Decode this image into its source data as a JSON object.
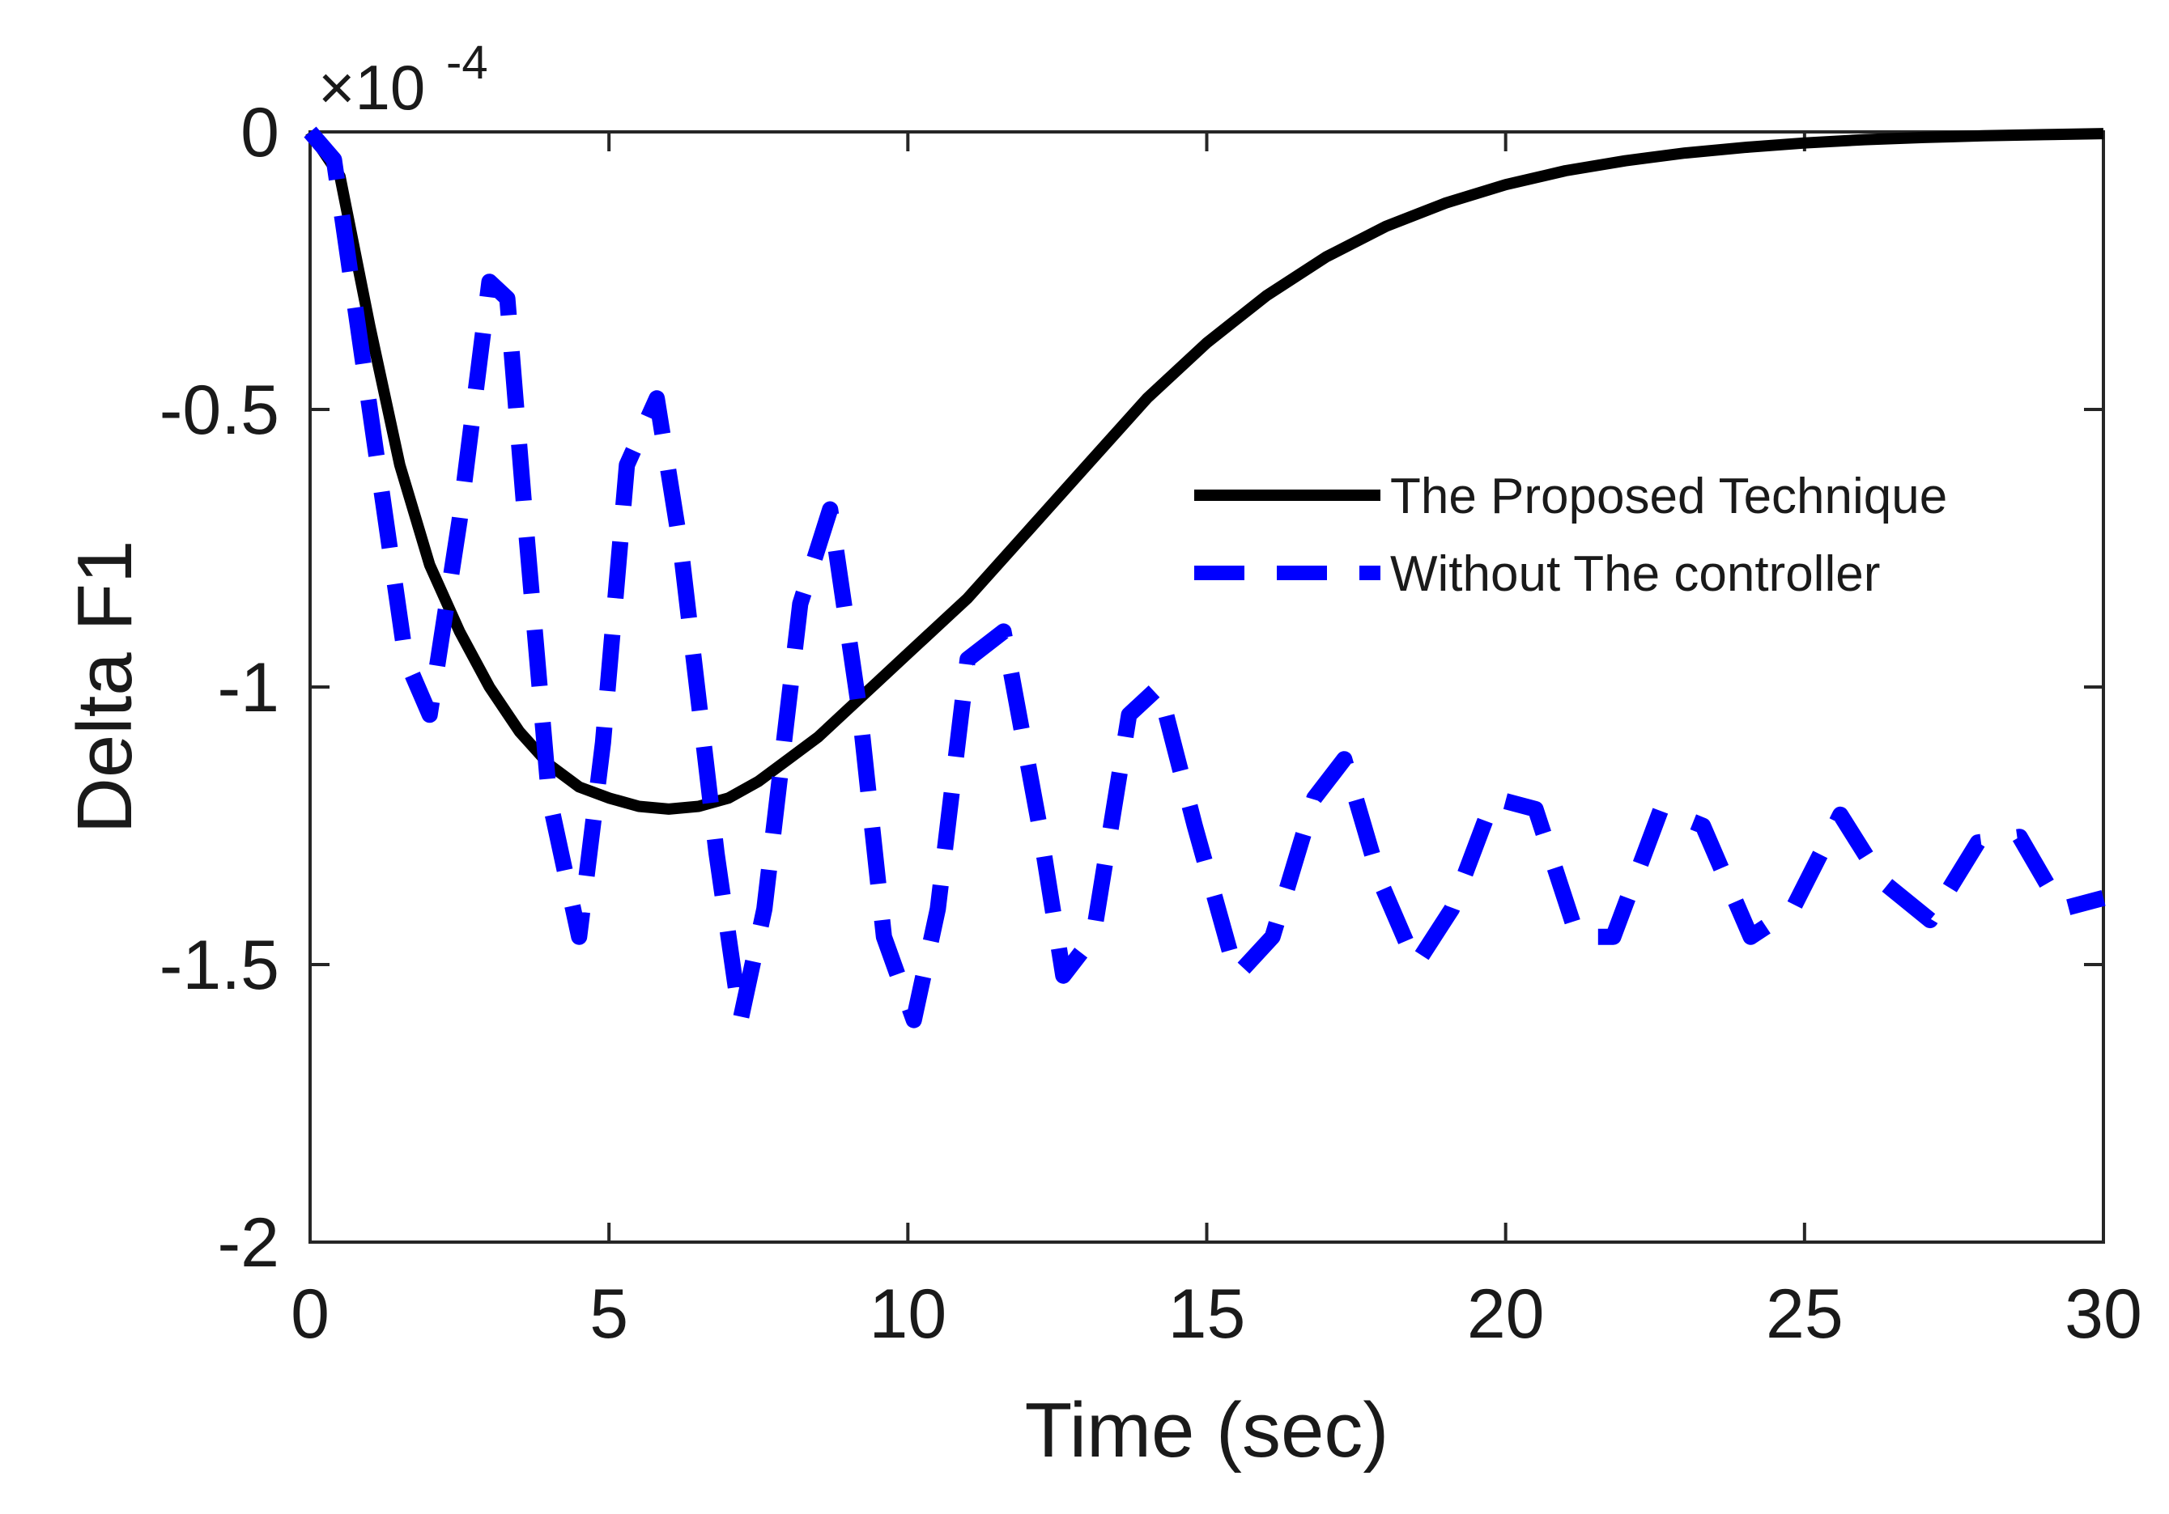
{
  "chart_data": {
    "type": "line",
    "title": "",
    "xlabel": "Time (sec)",
    "ylabel": "Delta F1",
    "xlim": [
      0,
      30
    ],
    "ylim": [
      -2,
      0
    ],
    "x_ticks": [
      0,
      5,
      10,
      15,
      20,
      25,
      30
    ],
    "y_ticks": [
      0,
      -0.5,
      -1,
      -1.5,
      -2
    ],
    "x_tick_labels": [
      "0",
      "5",
      "10",
      "15",
      "20",
      "25",
      "30"
    ],
    "y_tick_labels": [
      "0",
      "-0.5",
      "-1",
      "-1.5",
      "-2"
    ],
    "y_exponent_base": "×10",
    "y_exponent_power": "-4",
    "grid": false,
    "legend_position": "right",
    "series": [
      {
        "name": "The Proposed Technique",
        "style": "solid",
        "color": "#000000",
        "x": [
          0,
          0.5,
          1,
          1.5,
          2,
          2.5,
          3,
          3.5,
          4,
          4.5,
          5,
          5.5,
          6,
          6.5,
          7,
          7.5,
          8,
          8.5,
          9,
          9.5,
          10,
          11,
          12,
          13,
          14,
          15,
          16,
          17,
          18,
          19,
          20,
          21,
          22,
          23,
          24,
          25,
          26,
          27,
          28,
          29,
          30
        ],
        "values": [
          0,
          -0.08,
          -0.35,
          -0.6,
          -0.78,
          -0.9,
          -1.0,
          -1.08,
          -1.14,
          -1.18,
          -1.2,
          -1.215,
          -1.22,
          -1.215,
          -1.2,
          -1.17,
          -1.13,
          -1.09,
          -1.04,
          -0.99,
          -0.94,
          -0.84,
          -0.72,
          -0.6,
          -0.48,
          -0.38,
          -0.295,
          -0.225,
          -0.17,
          -0.128,
          -0.095,
          -0.07,
          -0.052,
          -0.038,
          -0.028,
          -0.02,
          -0.014,
          -0.01,
          -0.007,
          -0.005,
          -0.003
        ]
      },
      {
        "name": "Without The controller",
        "style": "dashed",
        "color": "#0000ff",
        "x": [
          0,
          0.4,
          0.8,
          1.2,
          1.6,
          2.0,
          2.5,
          3.0,
          3.3,
          3.6,
          4.0,
          4.5,
          4.9,
          5.3,
          5.8,
          6.2,
          6.8,
          7.2,
          7.6,
          8.2,
          8.7,
          9.2,
          9.6,
          10.1,
          10.5,
          11.0,
          11.6,
          12.2,
          12.6,
          13.1,
          13.7,
          14.2,
          14.8,
          15.5,
          16.1,
          16.8,
          17.3,
          17.9,
          18.5,
          19.1,
          19.8,
          20.5,
          21.2,
          21.8,
          22.6,
          23.3,
          24.1,
          24.8,
          25.6,
          26.3,
          27.1,
          27.9,
          28.6,
          29.3,
          30.0
        ],
        "values": [
          0,
          -0.05,
          -0.35,
          -0.65,
          -0.95,
          -1.05,
          -0.7,
          -0.27,
          -0.3,
          -0.7,
          -1.2,
          -1.45,
          -1.1,
          -0.6,
          -0.48,
          -0.75,
          -1.3,
          -1.6,
          -1.4,
          -0.85,
          -0.68,
          -1.05,
          -1.45,
          -1.6,
          -1.4,
          -0.95,
          -0.9,
          -1.25,
          -1.52,
          -1.45,
          -1.05,
          -1.0,
          -1.25,
          -1.52,
          -1.45,
          -1.2,
          -1.13,
          -1.35,
          -1.5,
          -1.4,
          -1.2,
          -1.22,
          -1.45,
          -1.45,
          -1.22,
          -1.25,
          -1.45,
          -1.4,
          -1.23,
          -1.35,
          -1.42,
          -1.28,
          -1.27,
          -1.4,
          -1.38
        ]
      }
    ]
  }
}
